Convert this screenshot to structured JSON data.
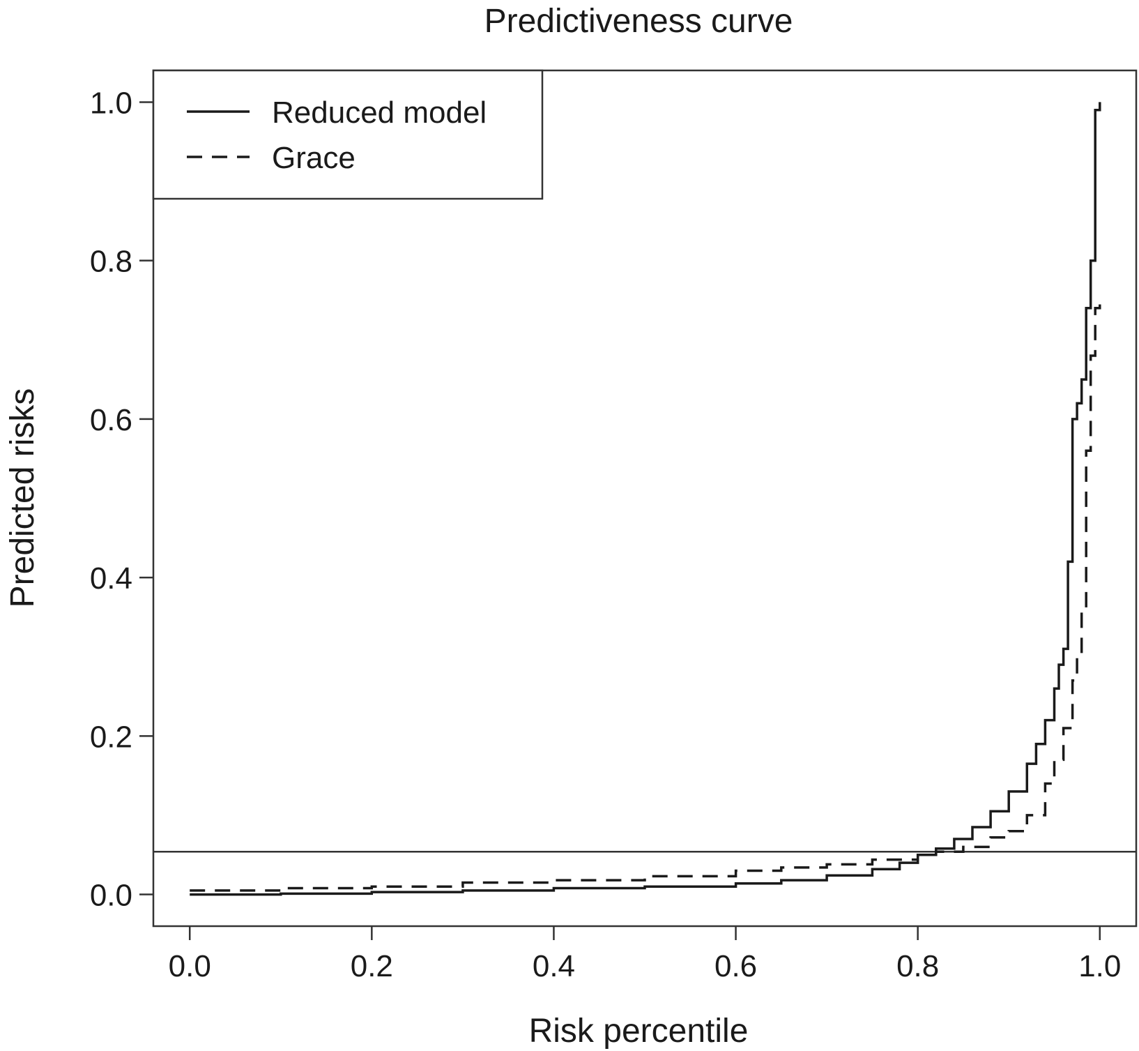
{
  "chart_data": {
    "type": "line",
    "title": "Predictiveness curve",
    "xlabel": "Risk percentile",
    "ylabel": "Predicted risks",
    "xlim": [
      -0.04,
      1.04
    ],
    "ylim": [
      -0.04,
      1.04
    ],
    "xticks": [
      0.0,
      0.2,
      0.4,
      0.6,
      0.8,
      1.0
    ],
    "yticks": [
      0.0,
      0.2,
      0.4,
      0.6,
      0.8,
      1.0
    ],
    "xtick_labels": [
      "0.0",
      "0.2",
      "0.4",
      "0.6",
      "0.8",
      "1.0"
    ],
    "ytick_labels": [
      "0.0",
      "0.2",
      "0.4",
      "0.6",
      "0.8",
      "1.0"
    ],
    "legend_position": "top-left",
    "grid": false,
    "reference_line": {
      "orientation": "horizontal",
      "y": 0.054
    },
    "series": [
      {
        "name": "Reduced model",
        "line_style": "solid",
        "color": "#1a1a1a",
        "x": [
          0.0,
          0.1,
          0.2,
          0.3,
          0.4,
          0.5,
          0.6,
          0.65,
          0.7,
          0.75,
          0.78,
          0.8,
          0.82,
          0.84,
          0.86,
          0.88,
          0.9,
          0.92,
          0.93,
          0.94,
          0.95,
          0.955,
          0.96,
          0.965,
          0.97,
          0.975,
          0.98,
          0.985,
          0.99,
          0.995,
          1.0
        ],
        "y": [
          0.0,
          0.001,
          0.003,
          0.005,
          0.008,
          0.01,
          0.014,
          0.018,
          0.024,
          0.032,
          0.04,
          0.05,
          0.058,
          0.07,
          0.085,
          0.105,
          0.13,
          0.165,
          0.19,
          0.22,
          0.26,
          0.29,
          0.31,
          0.42,
          0.6,
          0.62,
          0.65,
          0.74,
          0.8,
          0.99,
          1.0
        ]
      },
      {
        "name": "Grace",
        "line_style": "dashed",
        "color": "#1a1a1a",
        "x": [
          0.0,
          0.1,
          0.2,
          0.3,
          0.4,
          0.5,
          0.6,
          0.65,
          0.7,
          0.75,
          0.8,
          0.82,
          0.85,
          0.88,
          0.9,
          0.92,
          0.94,
          0.95,
          0.96,
          0.97,
          0.975,
          0.98,
          0.985,
          0.99,
          0.995,
          1.0
        ],
        "y": [
          0.005,
          0.008,
          0.01,
          0.015,
          0.018,
          0.023,
          0.03,
          0.034,
          0.038,
          0.044,
          0.05,
          0.054,
          0.06,
          0.072,
          0.08,
          0.1,
          0.14,
          0.17,
          0.21,
          0.27,
          0.3,
          0.36,
          0.56,
          0.68,
          0.74,
          0.75
        ]
      }
    ]
  }
}
